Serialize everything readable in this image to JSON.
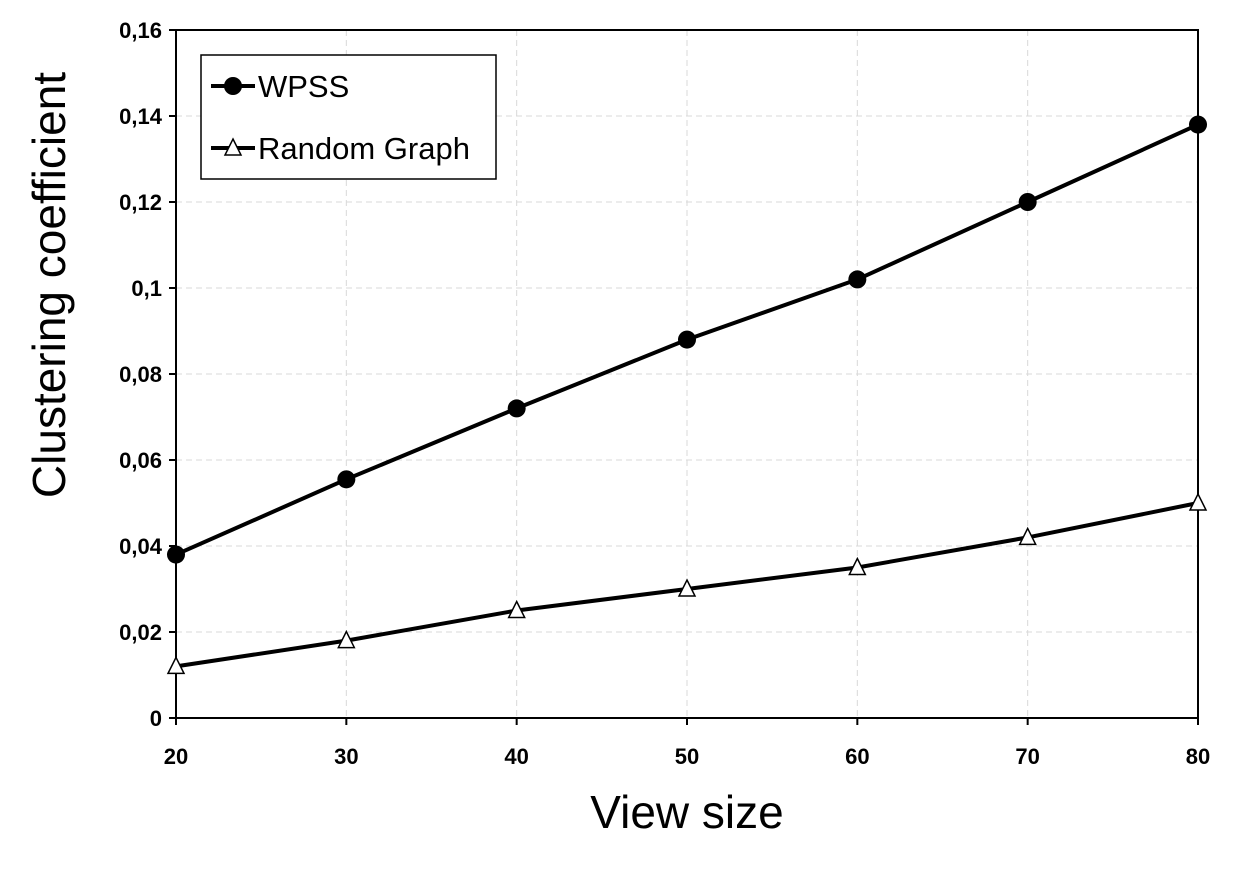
{
  "chart_data": {
    "type": "line",
    "title": "",
    "xlabel": "View size",
    "ylabel": "Clustering coefficient",
    "x": [
      20,
      30,
      40,
      50,
      60,
      70,
      80
    ],
    "x_tick_labels": [
      "20",
      "30",
      "40",
      "50",
      "60",
      "70",
      "80"
    ],
    "xlim": [
      20,
      80
    ],
    "ylim": [
      0,
      0.16
    ],
    "y_ticks": [
      0,
      0.02,
      0.04,
      0.06,
      0.08,
      0.1,
      0.12,
      0.14,
      0.16
    ],
    "y_tick_labels": [
      "0",
      "0,02",
      "0,04",
      "0,06",
      "0,08",
      "0,1",
      "0,12",
      "0,14",
      "0,16"
    ],
    "grid": true,
    "legend_position": "top-left",
    "series": [
      {
        "name": "WPSS",
        "marker": "filled-circle",
        "color": "#000000",
        "values": [
          0.038,
          0.0555,
          0.072,
          0.088,
          0.102,
          0.12,
          0.138
        ]
      },
      {
        "name": "Random Graph",
        "marker": "open-triangle",
        "color": "#000000",
        "values": [
          0.012,
          0.018,
          0.025,
          0.03,
          0.035,
          0.042,
          0.05
        ]
      }
    ]
  }
}
